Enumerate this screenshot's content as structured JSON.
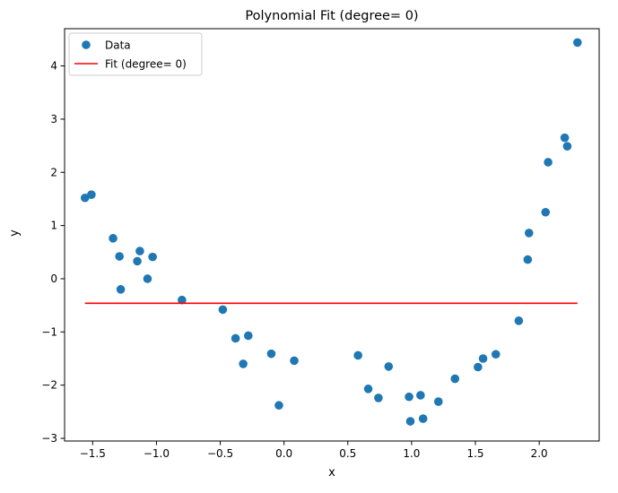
{
  "chart_data": {
    "type": "scatter",
    "title": "Polynomial Fit (degree= 0)",
    "xlabel": "x",
    "ylabel": "y",
    "xlim": [
      -1.72,
      2.47
    ],
    "ylim": [
      -3.05,
      4.7
    ],
    "xticks": [
      -1.5,
      -1.0,
      -0.5,
      0.0,
      0.5,
      1.0,
      1.5,
      2.0
    ],
    "xtick_labels": [
      "−1.5",
      "−1.0",
      "−0.5",
      "0.0",
      "0.5",
      "1.0",
      "1.5",
      "2.0"
    ],
    "yticks": [
      -3,
      -2,
      -1,
      0,
      1,
      2,
      3,
      4
    ],
    "ytick_labels": [
      "−3",
      "−2",
      "−1",
      "0",
      "1",
      "2",
      "3",
      "4"
    ],
    "grid": false,
    "legend_position": "top-left",
    "series": [
      {
        "name": "Data",
        "kind": "scatter",
        "color": "#1f77b4",
        "x": [
          -1.56,
          -1.51,
          -1.34,
          -1.29,
          -1.28,
          -1.15,
          -1.13,
          -1.07,
          -1.03,
          -0.8,
          -0.48,
          -0.38,
          -0.32,
          -0.28,
          -0.1,
          -0.04,
          0.08,
          0.58,
          0.66,
          0.74,
          0.82,
          0.98,
          0.99,
          1.07,
          1.09,
          1.21,
          1.34,
          1.52,
          1.56,
          1.66,
          1.84,
          1.91,
          1.92,
          2.05,
          2.07,
          2.2,
          2.22,
          2.3
        ],
        "y": [
          1.52,
          1.58,
          0.76,
          0.42,
          -0.2,
          0.33,
          0.52,
          0.0,
          0.41,
          -0.4,
          -0.58,
          -1.12,
          -1.6,
          -1.07,
          -1.41,
          -2.38,
          -1.54,
          -1.44,
          -2.07,
          -2.24,
          -1.65,
          -2.22,
          -2.68,
          -2.19,
          -2.63,
          -2.31,
          -1.88,
          -1.66,
          -1.5,
          -1.42,
          -0.79,
          0.36,
          0.86,
          1.25,
          2.19,
          2.65,
          2.49,
          4.44
        ]
      },
      {
        "name": "Fit (degree= 0)",
        "kind": "line",
        "color": "#ff0000",
        "x": [
          -1.56,
          2.3
        ],
        "y": [
          -0.46,
          -0.46
        ]
      }
    ]
  }
}
